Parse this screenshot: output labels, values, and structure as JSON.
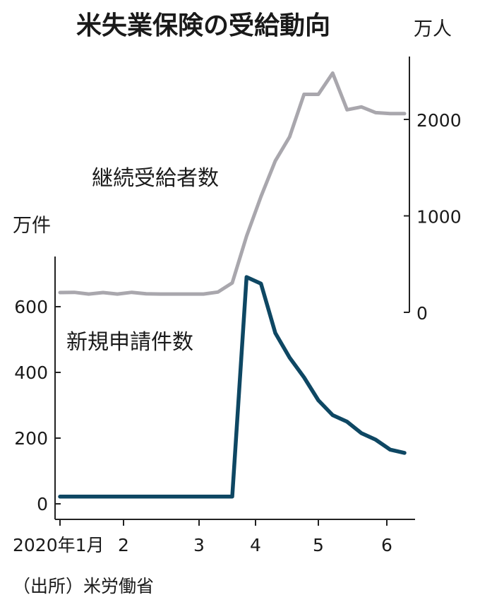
{
  "chart_data": {
    "type": "line",
    "title": "米失業保険の受給動向",
    "source": "（出所）米労働省",
    "x_axis": {
      "tick_labels": [
        "2020年1月",
        "2",
        "3",
        "4",
        "5",
        "6"
      ]
    },
    "left_axis": {
      "unit": "万件",
      "ylim": [
        0,
        700
      ],
      "ticks": [
        0,
        200,
        400,
        600
      ]
    },
    "right_axis": {
      "unit": "万人",
      "ylim": [
        0,
        2600
      ],
      "ticks": [
        0,
        1000,
        2000
      ]
    },
    "series": [
      {
        "name": "継続受給者数",
        "axis": "right",
        "color": "#a9a7ad",
        "values": [
          205,
          207,
          190,
          205,
          190,
          207,
          193,
          190,
          190,
          190,
          190,
          210,
          305,
          790,
          1200,
          1570,
          1820,
          2260,
          2260,
          2480,
          2100,
          2130,
          2070,
          2060,
          2060
        ]
      },
      {
        "name": "新規申請件数",
        "axis": "left",
        "color": "#0e4763",
        "values": [
          22,
          22,
          22,
          22,
          22,
          22,
          22,
          22,
          22,
          22,
          22,
          22,
          22,
          690,
          670,
          520,
          445,
          385,
          315,
          270,
          250,
          215,
          195,
          165,
          155
        ]
      }
    ]
  }
}
